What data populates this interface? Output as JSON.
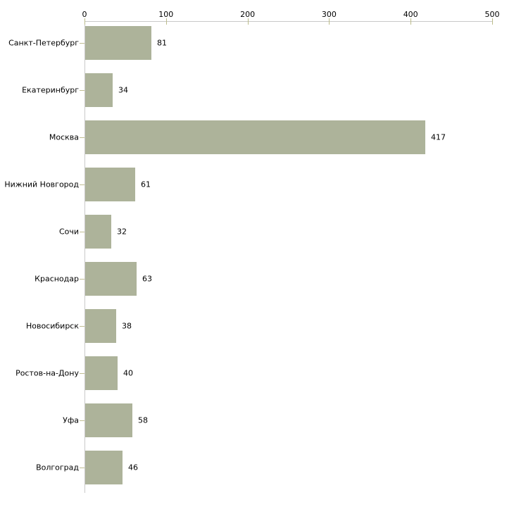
{
  "chart_data": {
    "type": "bar",
    "orientation": "horizontal",
    "title": "",
    "xlabel": "",
    "ylabel": "",
    "categories": [
      "Санкт-Петербург",
      "Екатеринбург",
      "Москва",
      "Нижний Новгород",
      "Сочи",
      "Краснодар",
      "Новосибирск",
      "Ростов-на-Дону",
      "Уфа",
      "Волгоград"
    ],
    "values": [
      81,
      34,
      417,
      61,
      32,
      63,
      38,
      40,
      58,
      46
    ],
    "value_labels": [
      "81",
      "34",
      "417",
      "61",
      "32",
      "63",
      "38",
      "40",
      "58",
      "46"
    ],
    "x_ticks": [
      0,
      100,
      200,
      300,
      400,
      500
    ],
    "x_tick_labels": [
      "0",
      "100",
      "200",
      "300",
      "400",
      "500"
    ],
    "xlim": [
      0,
      500
    ],
    "grid": false,
    "legend": null,
    "axis_position": "top",
    "value_labels_shown": true,
    "colors": {
      "bar": "#adb39a",
      "axis_line": "#c9c9c9",
      "tick_mark": "#bcbc8a",
      "category_tick": "#c0bd92",
      "text": "#000000",
      "background": "#ffffff"
    }
  }
}
